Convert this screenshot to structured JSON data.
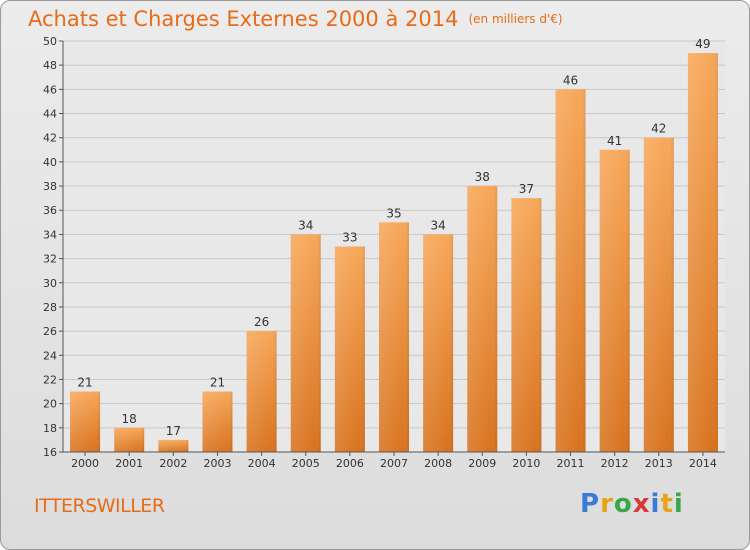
{
  "title": "Achats et Charges Externes 2000 à 2014",
  "unit": "(en milliers d'€)",
  "location": "ITTERSWILLER",
  "logo": {
    "letters": [
      "P",
      "r",
      "o",
      "x",
      "i",
      "t",
      "i"
    ],
    "colors": [
      "#3a7bd5",
      "#e8a317",
      "#3aa64a",
      "#d83a3a",
      "#3a7bd5",
      "#e8a317",
      "#3aa64a"
    ]
  },
  "colors": {
    "accent": "#e86b17",
    "bar_top": "#f7a85a",
    "bar_bottom": "#d8731f"
  },
  "chart_data": {
    "type": "bar",
    "categories": [
      "2000",
      "2001",
      "2002",
      "2003",
      "2004",
      "2005",
      "2006",
      "2007",
      "2008",
      "2009",
      "2010",
      "2011",
      "2012",
      "2013",
      "2014"
    ],
    "values": [
      21,
      18,
      17,
      21,
      26,
      34,
      33,
      35,
      34,
      38,
      37,
      46,
      41,
      42,
      49
    ],
    "ylim": [
      16,
      50
    ],
    "yticks": [
      16,
      18,
      20,
      22,
      24,
      26,
      28,
      30,
      32,
      34,
      36,
      38,
      40,
      42,
      44,
      46,
      48,
      50
    ],
    "grid": true
  }
}
